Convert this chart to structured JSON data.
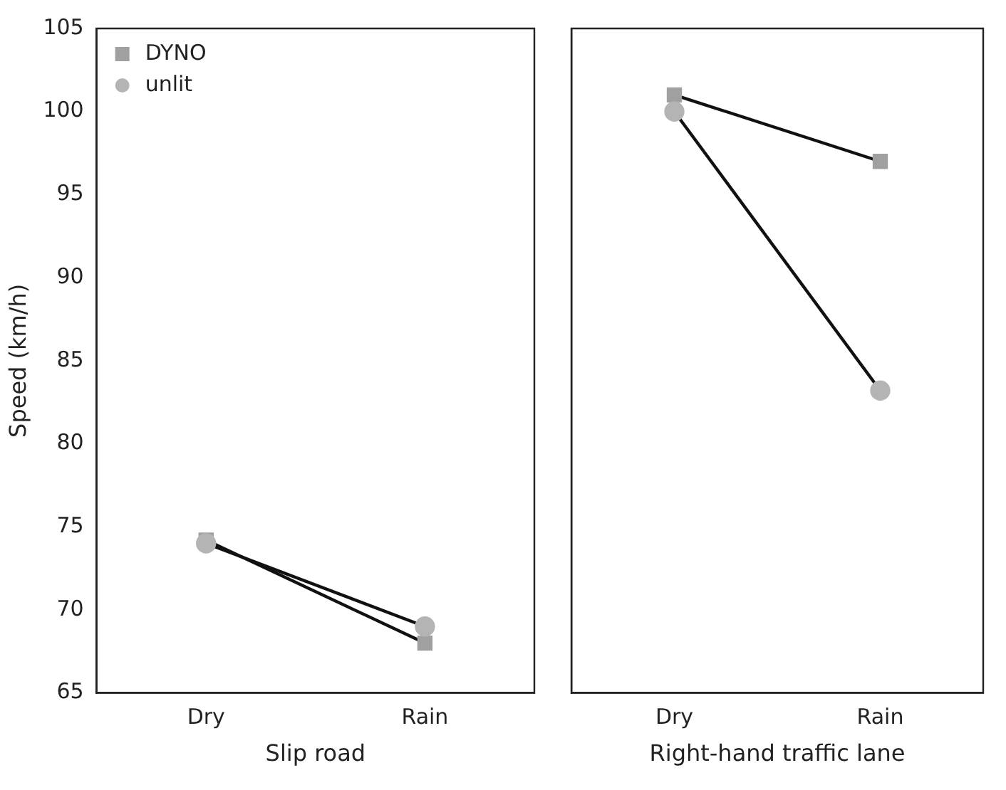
{
  "chart_data": [
    {
      "type": "line",
      "xlabel": "Slip road",
      "ylabel": "Speed (km/h)",
      "categories": [
        "Dry",
        "Rain"
      ],
      "series": [
        {
          "name": "DYNO",
          "color": "#a0a0a0",
          "values": [
            74.2,
            68
          ],
          "marker": "square"
        },
        {
          "name": "unlit",
          "color": "#b4b4b4",
          "values": [
            74,
            69
          ],
          "marker": "circle"
        }
      ],
      "ylim": [
        65,
        105
      ],
      "yticks": [
        65,
        70,
        75,
        80,
        85,
        90,
        95,
        100,
        105
      ],
      "grid": false,
      "legend": "top left"
    },
    {
      "type": "line",
      "xlabel": "Right-hand traffic lane",
      "categories": [
        "Dry",
        "Rain"
      ],
      "series": [
        {
          "color": "#a0a0a0",
          "values": [
            101,
            97
          ],
          "marker": "square"
        },
        {
          "color": "#b4b4b4",
          "values": [
            100,
            83.2
          ],
          "marker": "circle"
        }
      ],
      "ylim": [
        65,
        105
      ],
      "yticks": [
        65,
        70,
        75,
        80,
        85,
        90,
        95,
        100,
        105
      ],
      "grid": false,
      "legend": false,
      "tick_labels": "x"
    }
  ]
}
